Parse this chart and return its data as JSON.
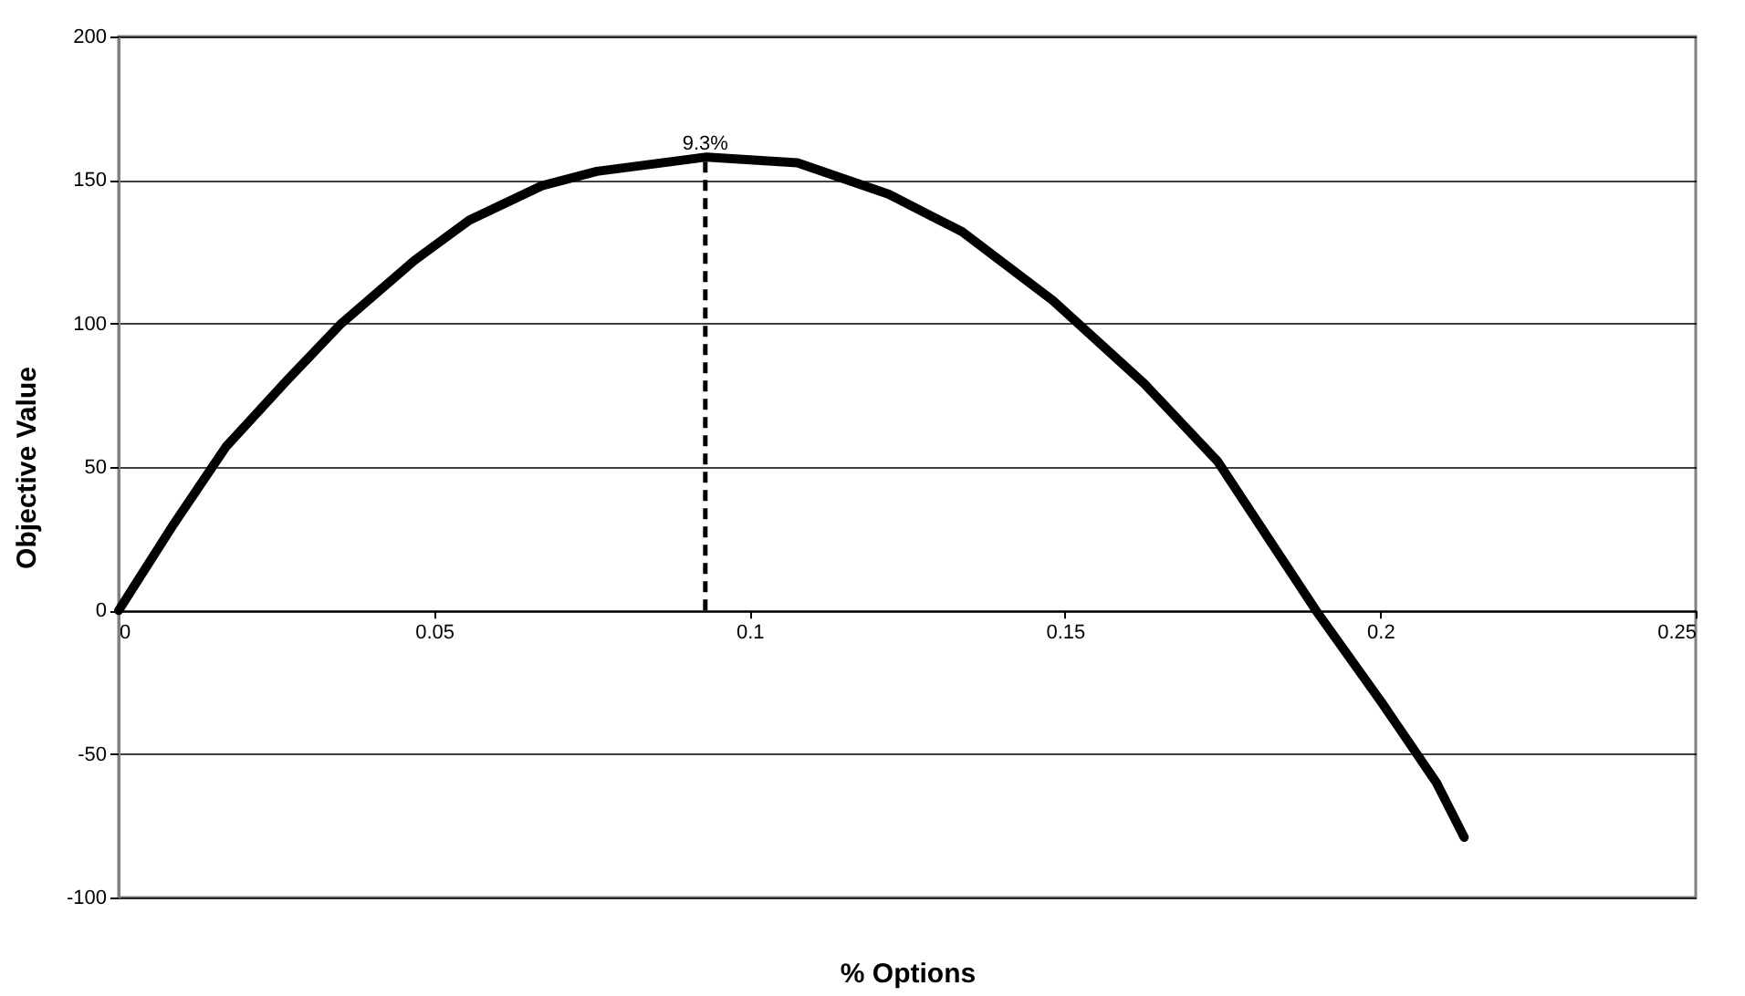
{
  "chart_data": {
    "type": "line",
    "xlabel": "% Options",
    "ylabel": "Objective Value",
    "x": [
      0,
      0.0087,
      0.017,
      0.0266,
      0.0353,
      0.0469,
      0.0556,
      0.0671,
      0.0758,
      0.0932,
      0.1076,
      0.1221,
      0.1337,
      0.1481,
      0.1626,
      0.1742,
      0.1898,
      0.2002,
      0.2089,
      0.2133
    ],
    "series": [
      {
        "color": "#000000",
        "values": [
          0,
          30,
          57,
          80,
          100,
          122,
          136,
          148,
          153,
          158,
          156,
          145,
          132,
          108,
          79,
          52,
          0,
          -32,
          -60,
          -79
        ]
      }
    ],
    "xlim": [
      0,
      0.25
    ],
    "xticks": [
      0,
      0.05,
      0.1,
      0.15,
      0.2,
      0.25
    ],
    "ylim": [
      -100,
      200
    ],
    "yticks": [
      -100,
      -50,
      0,
      50,
      100,
      150,
      200
    ],
    "ref_lines": [
      {
        "axis": "x",
        "value": 0.093,
        "label": "9.3%",
        "color": "#000000",
        "line_style": "dashed"
      }
    ],
    "grid": "y",
    "marker": "none",
    "line_style": "solid"
  }
}
